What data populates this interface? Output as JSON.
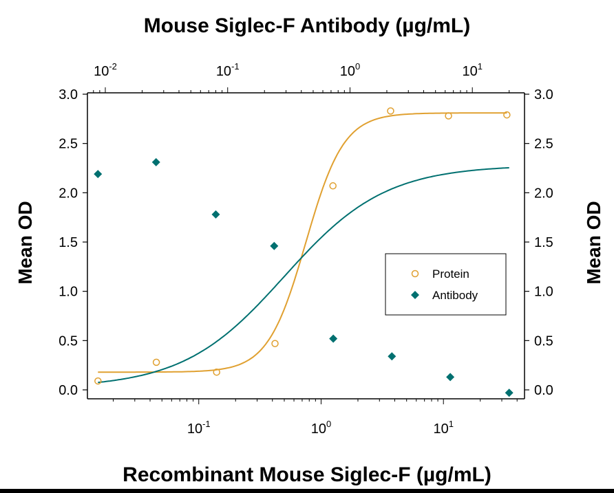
{
  "chart_data": {
    "type": "scatter",
    "top_title": "Mouse Siglec-F Antibody (µg/mL)",
    "xlabel": "Recombinant Mouse Siglec-F (µg/mL)",
    "ylabel_left": "Mean OD",
    "ylabel_right": "Mean OD",
    "ylim": [
      0,
      3
    ],
    "yticks": [
      "0.0",
      "0.5",
      "1.0",
      "1.5",
      "2.0",
      "2.5",
      "3.0"
    ],
    "bottom_axis": {
      "scale": "log",
      "range": [
        0.0123,
        46
      ],
      "ticks": [
        {
          "value": 0.1,
          "base": "10",
          "exp": "-1"
        },
        {
          "value": 1,
          "base": "10",
          "exp": "0"
        },
        {
          "value": 10,
          "base": "10",
          "exp": "1"
        }
      ]
    },
    "top_axis": {
      "scale": "log",
      "range": [
        0.00714,
        26.7
      ],
      "ticks": [
        {
          "value": 0.01,
          "base": "10",
          "exp": "-2"
        },
        {
          "value": 0.1,
          "base": "10",
          "exp": "-1"
        },
        {
          "value": 1,
          "base": "10",
          "exp": "0"
        },
        {
          "value": 10,
          "base": "10",
          "exp": "1"
        }
      ]
    },
    "series": [
      {
        "name": "Protein",
        "axis": "bottom",
        "marker": "open-circle",
        "color": "#E0A030",
        "x": [
          0.015,
          0.045,
          0.14,
          0.42,
          1.25,
          3.7,
          11,
          33
        ],
        "y": [
          0.09,
          0.28,
          0.18,
          0.47,
          2.07,
          2.83,
          2.78,
          2.79
        ],
        "fit": {
          "bottom": 0.18,
          "top": 2.81,
          "ec50": 0.75,
          "hill": 2.8,
          "x_from": 0.015,
          "x_to": 33
        }
      },
      {
        "name": "Antibody",
        "axis": "top",
        "marker": "filled-diamond",
        "color": "#007070",
        "x": [
          0.0087,
          0.026,
          0.08,
          0.24,
          0.73,
          2.2,
          6.6,
          20
        ],
        "y": [
          2.19,
          2.31,
          1.78,
          1.46,
          0.52,
          0.34,
          0.13,
          -0.03
        ],
        "fit": {
          "bottom": 0.02,
          "top": 2.28,
          "ec50": 0.29,
          "hill": 1.05,
          "x_from": 0.0087,
          "x_to": 20
        }
      }
    ],
    "legend": {
      "placement": "right",
      "entries": [
        "Protein",
        "Antibody"
      ]
    }
  }
}
